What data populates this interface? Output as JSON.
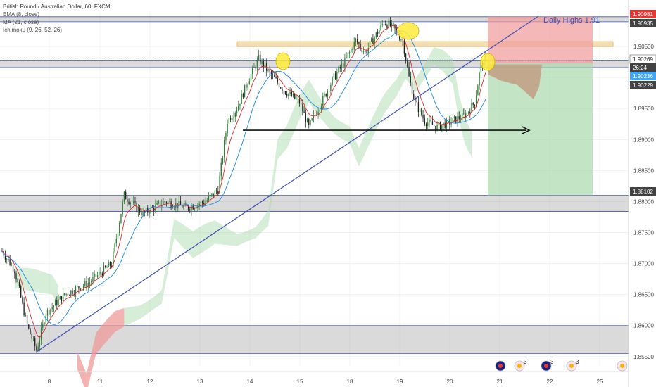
{
  "header": {
    "title": "British Pound / Australian Dollar, 60, FXCM",
    "indicators": [
      "EMA (8, close)",
      "MA (21, close)",
      "Ichimoku (9, 26, 52, 26)"
    ]
  },
  "colors": {
    "up": "#2e7d32",
    "down": "#222222",
    "ema": "#d32f2f",
    "ma": "#1e88e5",
    "trendline": "#3f51b5",
    "kumo_bull": "#a5d6a7",
    "kumo_bear": "#ef9a9a",
    "zone": "#9e9e9e",
    "resistance_fill": "#f5deb3",
    "highlight": "#ffeb3b",
    "sl_fill": "#ef9a9a",
    "tp_fill": "#a5d6a7"
  },
  "chart_data": {
    "type": "candlestick",
    "ylim": [
      1.8535,
      1.9108
    ],
    "y_ticks": [
      "1.90500",
      "1.90000",
      "1.89500",
      "1.89000",
      "1.88500",
      "1.88000",
      "1.87500",
      "1.87000",
      "1.86500",
      "1.86000",
      "1.85500"
    ],
    "x_ticks": [
      "8",
      "11",
      "12",
      "13",
      "14",
      "15",
      "18",
      "19",
      "20",
      "21",
      "22",
      "25"
    ],
    "price_tags": [
      {
        "value": "1.90981",
        "color": "#e53935"
      },
      {
        "value": "1.90935",
        "color": "#424242"
      },
      {
        "value": "1.90269",
        "color": "#ffffff"
      },
      {
        "value": "26:24",
        "color": "#424242"
      },
      {
        "value": "1.90236",
        "color": "#42a5f5"
      },
      {
        "value": "1.90229",
        "color": "#424242"
      },
      {
        "value": "1.88102",
        "color": "#424242"
      }
    ],
    "annotation": "Daily Highs 1.91",
    "horizontal_zones": [
      {
        "from": 1.909,
        "to": 1.9098
      },
      {
        "from": 1.9016,
        "to": 1.9028
      },
      {
        "from": 1.8784,
        "to": 1.881
      },
      {
        "from": 1.8555,
        "to": 1.86
      }
    ],
    "resistance_band": {
      "from": 1.905,
      "to": 1.9058
    },
    "neckline_level": 1.8915,
    "trade": {
      "entry": 1.9023,
      "stop": 1.9098,
      "target": 1.881
    },
    "series": [
      {
        "name": "EMA (8, close)",
        "values": []
      },
      {
        "name": "MA (21, close)",
        "values": []
      }
    ],
    "waypoints": [
      [
        0,
        1.872
      ],
      [
        8,
        1.869
      ],
      [
        16,
        1.86
      ],
      [
        22,
        1.856
      ],
      [
        28,
        1.862
      ],
      [
        40,
        1.865
      ],
      [
        56,
        1.867
      ],
      [
        70,
        1.87
      ],
      [
        78,
        1.881
      ],
      [
        90,
        1.878
      ],
      [
        104,
        1.88
      ],
      [
        118,
        1.879
      ],
      [
        130,
        1.88
      ],
      [
        138,
        1.882
      ],
      [
        144,
        1.893
      ],
      [
        150,
        1.895
      ],
      [
        158,
        1.9
      ],
      [
        164,
        1.903
      ],
      [
        170,
        1.901
      ],
      [
        180,
        1.898
      ],
      [
        190,
        1.896
      ],
      [
        196,
        1.892
      ],
      [
        204,
        1.896
      ],
      [
        212,
        1.9
      ],
      [
        220,
        1.903
      ],
      [
        226,
        1.906
      ],
      [
        232,
        1.904
      ],
      [
        238,
        1.9065
      ],
      [
        244,
        1.909
      ],
      [
        250,
        1.908
      ],
      [
        256,
        1.906
      ],
      [
        260,
        1.9
      ],
      [
        264,
        1.896
      ],
      [
        270,
        1.893
      ],
      [
        278,
        1.892
      ],
      [
        288,
        1.893
      ],
      [
        296,
        1.894
      ],
      [
        302,
        1.896
      ],
      [
        306,
        1.902
      ],
      [
        308,
        1.9028
      ]
    ]
  },
  "bottom_icons": [
    "au-flag-icon",
    "event-icon",
    "au-flag-icon",
    "event-icon",
    "event-icon"
  ],
  "event_counts": [
    "3",
    "3",
    "3"
  ]
}
